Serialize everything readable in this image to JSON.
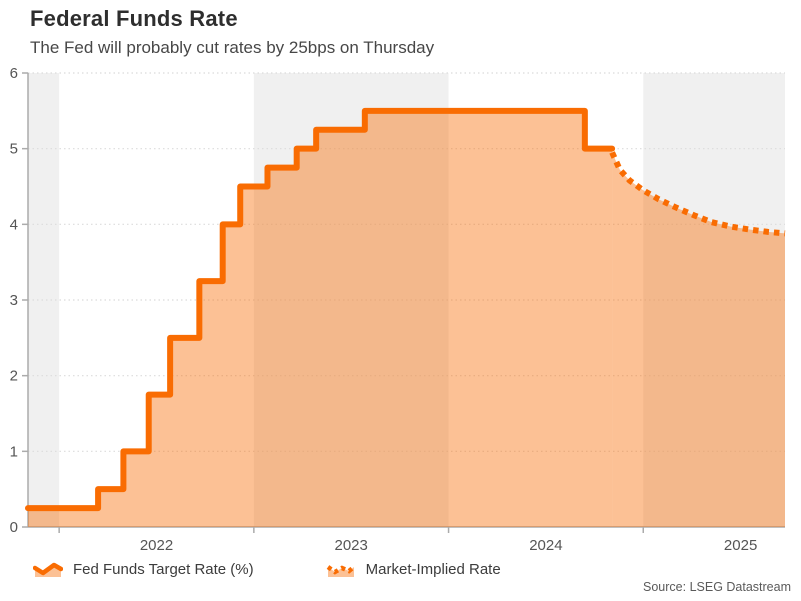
{
  "header": {
    "title": "Federal Funds Rate",
    "subtitle": "The Fed will probably cut rates by 25bps on Thursday"
  },
  "legend": {
    "items": [
      {
        "label": "Fed Funds Target Rate (%)",
        "style": "solid"
      },
      {
        "label": "Market-Implied Rate",
        "style": "dotted"
      }
    ]
  },
  "footer": {
    "source": "Source: LSEG Datastream"
  },
  "chart_data": {
    "type": "area",
    "subtype": "step-area with projected dotted line",
    "title": "Federal Funds Rate",
    "xlabel": "",
    "ylabel": "",
    "xlim": [
      2021.84,
      2025.728
    ],
    "ylim": [
      0,
      6
    ],
    "y_ticks": [
      0,
      1,
      2,
      3,
      4,
      5,
      6
    ],
    "x_ticks": [
      2022,
      2023,
      2024,
      2025
    ],
    "x_tick_labels": [
      "2022",
      "2023",
      "2024",
      "2025"
    ],
    "grid": "horizontal-dotted",
    "legend_position": "bottom",
    "background_bands": [
      [
        2021.84,
        2022
      ],
      [
        2023,
        2024
      ],
      [
        2025,
        2025.728
      ]
    ],
    "series": [
      {
        "name": "Fed Funds Target Rate (%)",
        "draw": "step",
        "line": "solid",
        "points": [
          [
            2021.84,
            0.25
          ],
          [
            2022.2,
            0.5
          ],
          [
            2022.33,
            1.0
          ],
          [
            2022.46,
            1.75
          ],
          [
            2022.57,
            2.5
          ],
          [
            2022.72,
            3.25
          ],
          [
            2022.84,
            4.0
          ],
          [
            2022.93,
            4.5
          ],
          [
            2023.07,
            4.75
          ],
          [
            2023.22,
            5.0
          ],
          [
            2023.32,
            5.25
          ],
          [
            2023.57,
            5.5
          ],
          [
            2024.7,
            5.0
          ]
        ],
        "end_x": 2024.84
      },
      {
        "name": "Market-Implied Rate",
        "draw": "line",
        "line": "dotted",
        "points": [
          [
            2024.84,
            4.95
          ],
          [
            2024.88,
            4.72
          ],
          [
            2024.93,
            4.58
          ],
          [
            2025.0,
            4.45
          ],
          [
            2025.08,
            4.33
          ],
          [
            2025.17,
            4.22
          ],
          [
            2025.26,
            4.12
          ],
          [
            2025.35,
            4.03
          ],
          [
            2025.45,
            3.97
          ],
          [
            2025.55,
            3.93
          ],
          [
            2025.64,
            3.9
          ],
          [
            2025.728,
            3.88
          ]
        ]
      }
    ],
    "colors": {
      "line": "#F96C02",
      "fill": "#F96C02",
      "fill_opacity": 0.42,
      "band": "#F0F0F0",
      "grid": "#DBDBDB",
      "axis": "#ABABAB",
      "tick_text": "#555555"
    }
  }
}
